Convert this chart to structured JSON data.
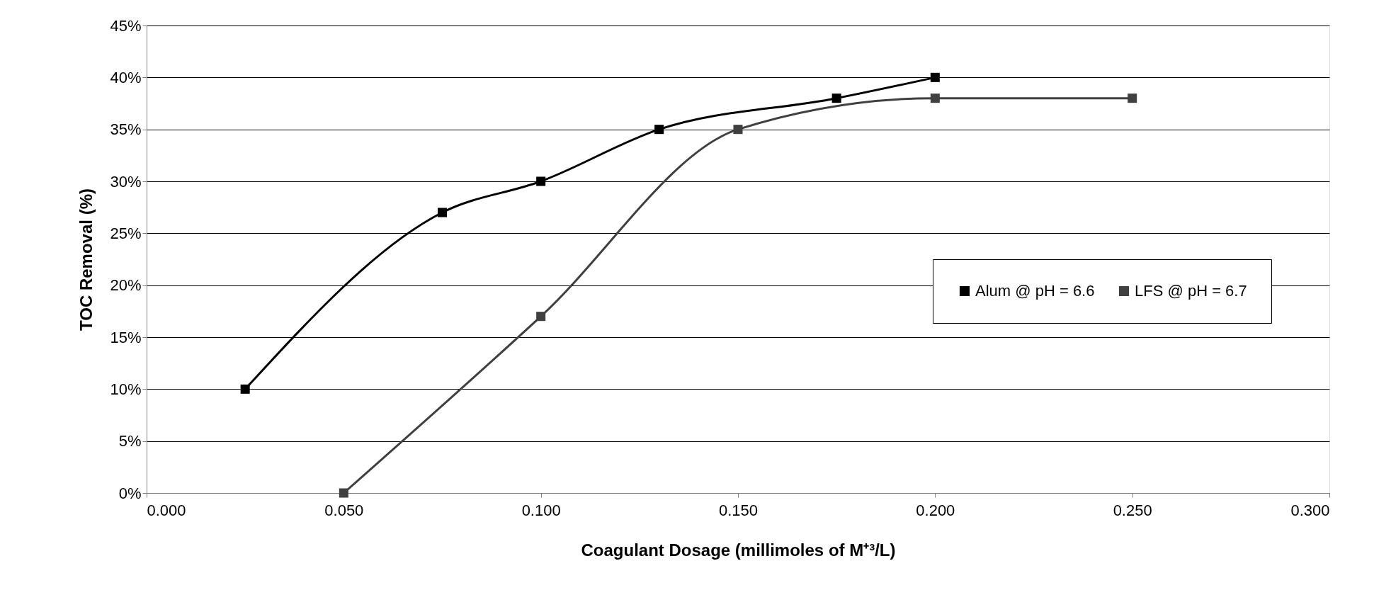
{
  "chart_data": {
    "type": "line",
    "xlabel": "Coagulant Dosage (millimoles of M⁺³/L)",
    "ylabel": "TOC Removal (%)",
    "series": [
      {
        "name": "Alum @ pH = 6.6",
        "color": "#000000",
        "x": [
          0.025,
          0.075,
          0.1,
          0.13,
          0.175,
          0.2
        ],
        "values": [
          10,
          27,
          30,
          35,
          38,
          40
        ]
      },
      {
        "name": "LFS @ pH = 6.7",
        "color": "#404040",
        "x": [
          0.05,
          0.1,
          0.15,
          0.2,
          0.25
        ],
        "values": [
          0,
          17,
          35,
          38,
          38
        ]
      }
    ],
    "xlim": [
      0,
      0.3
    ],
    "xticks": [
      {
        "value": 0,
        "label": "0.000"
      },
      {
        "value": 0.05,
        "label": "0.050"
      },
      {
        "value": 0.1,
        "label": "0.100"
      },
      {
        "value": 0.15,
        "label": "0.150"
      },
      {
        "value": 0.2,
        "label": "0.200"
      },
      {
        "value": 0.25,
        "label": "0.250"
      },
      {
        "value": 0.3,
        "label": "0.300"
      }
    ],
    "ylim": [
      0,
      45
    ],
    "yticks": [
      {
        "value": 0,
        "label": "0%"
      },
      {
        "value": 5,
        "label": "5%"
      },
      {
        "value": 10,
        "label": "10%"
      },
      {
        "value": 15,
        "label": "15%"
      },
      {
        "value": 20,
        "label": "20%"
      },
      {
        "value": 25,
        "label": "25%"
      },
      {
        "value": 30,
        "label": "30%"
      },
      {
        "value": 35,
        "label": "35%"
      },
      {
        "value": 40,
        "label": "40%"
      },
      {
        "value": 45,
        "label": "45%"
      }
    ],
    "grid": "y",
    "legend": "right",
    "marker": "square",
    "line_style": "solid"
  }
}
